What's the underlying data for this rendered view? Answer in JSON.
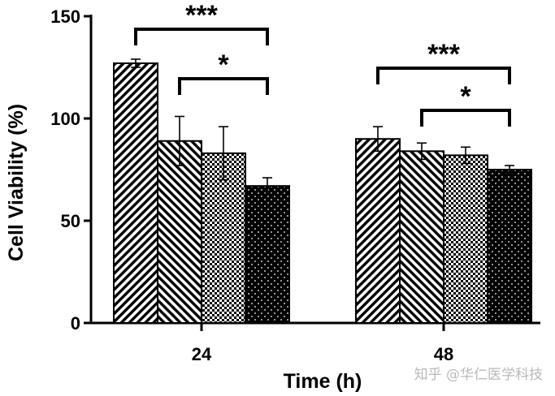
{
  "chart_data": {
    "type": "bar",
    "title": "",
    "xlabel": "Time (h)",
    "ylabel": "Cell Viability (%)",
    "ylim": [
      0,
      150
    ],
    "yticks": [
      0,
      50,
      100,
      150
    ],
    "categories": [
      "24",
      "48"
    ],
    "grid": false,
    "legend": "none",
    "series": [
      {
        "pattern": "diagonal-stripes-right",
        "values": [
          127,
          90
        ],
        "errors": [
          2,
          6
        ]
      },
      {
        "pattern": "diagonal-stripes-left",
        "values": [
          89,
          84
        ],
        "errors": [
          12,
          4
        ]
      },
      {
        "pattern": "checkerboard",
        "values": [
          83,
          82
        ],
        "errors": [
          13,
          4
        ]
      },
      {
        "pattern": "dots",
        "values": [
          67,
          75
        ],
        "errors": [
          4,
          2
        ]
      }
    ],
    "significance": [
      {
        "category": "24",
        "from_series": 0,
        "to_series": 3,
        "label": "***"
      },
      {
        "category": "24",
        "from_series": 1,
        "to_series": 3,
        "label": "*"
      },
      {
        "category": "48",
        "from_series": 0,
        "to_series": 3,
        "label": "***"
      },
      {
        "category": "48",
        "from_series": 1,
        "to_series": 3,
        "label": "*"
      }
    ]
  },
  "watermark": "知乎 @华仁医学科技",
  "colors": {
    "ink": "#000000",
    "background": "#ffffff",
    "watermark": "#b9b9b9"
  }
}
